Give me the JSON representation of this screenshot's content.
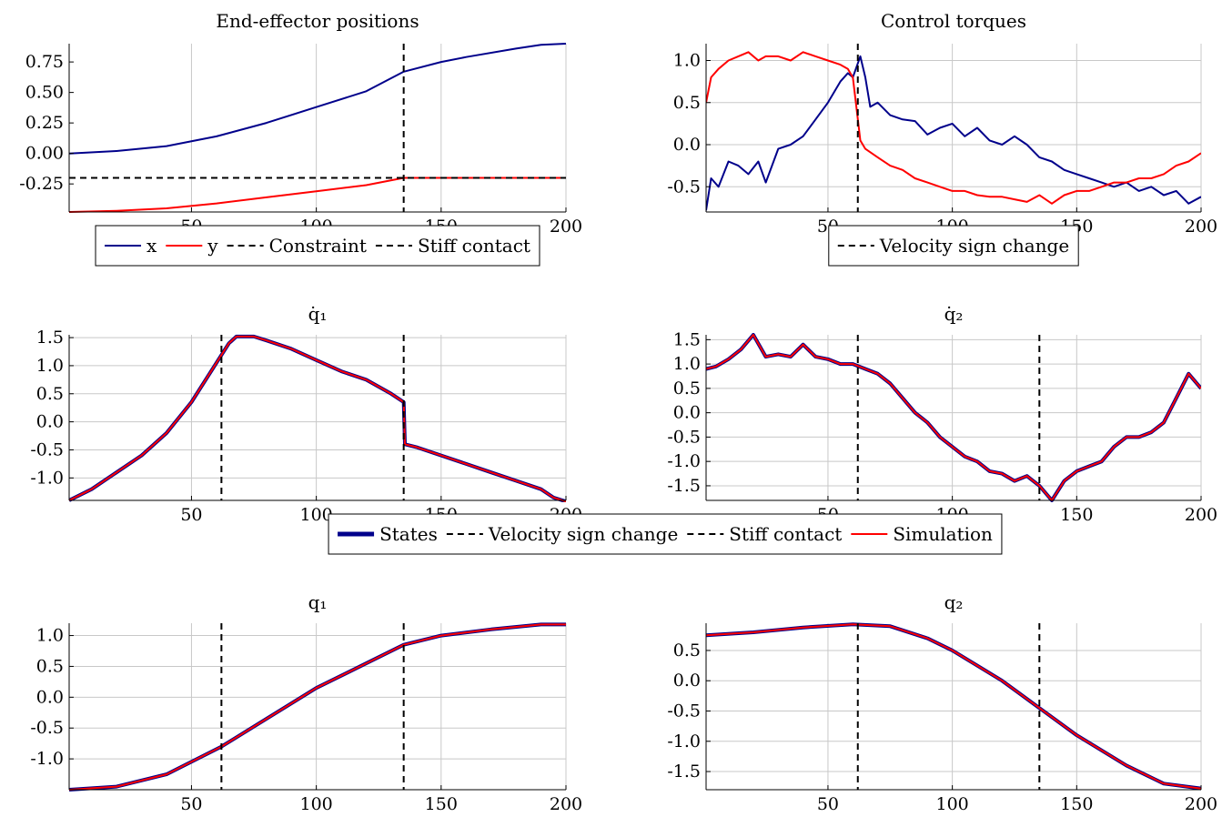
{
  "colors": {
    "blue": "#00008b",
    "red": "#ff0000",
    "black": "#000000",
    "grid": "#c8c8c8"
  },
  "chart_data": [
    {
      "id": "ee",
      "type": "line",
      "title": "End-effector positions",
      "xlim": [
        1,
        200
      ],
      "ylim": [
        -0.48,
        0.9
      ],
      "xticks": [
        50,
        100,
        150,
        200
      ],
      "yticks": [
        -0.25,
        0.0,
        0.25,
        0.5,
        0.75
      ],
      "ytick_labels": [
        "-0.25",
        "0.00",
        "0.25",
        "0.50",
        "0.75"
      ],
      "grid": "x-only",
      "series": [
        {
          "name": "x",
          "color": "#00008b",
          "x": [
            1,
            20,
            40,
            60,
            80,
            100,
            120,
            135,
            150,
            160,
            180,
            190,
            200
          ],
          "y": [
            0.0,
            0.02,
            0.06,
            0.14,
            0.25,
            0.38,
            0.51,
            0.67,
            0.75,
            0.79,
            0.86,
            0.89,
            0.9
          ]
        },
        {
          "name": "y",
          "color": "#ff0000",
          "x": [
            1,
            20,
            40,
            60,
            80,
            100,
            120,
            135,
            150,
            200
          ],
          "y": [
            -0.48,
            -0.47,
            -0.45,
            -0.41,
            -0.36,
            -0.31,
            -0.26,
            -0.2,
            -0.2,
            -0.2
          ]
        }
      ],
      "hlines": [
        {
          "name": "Constraint",
          "y": -0.2,
          "color": "#000000"
        }
      ],
      "vlines": [
        {
          "name": "Stiff contact",
          "x": 135,
          "color": "#000000"
        }
      ],
      "legend": {
        "position": "below",
        "entries": [
          {
            "label": "x",
            "style": "solid",
            "color": "#00008b"
          },
          {
            "label": "y",
            "style": "solid",
            "color": "#ff0000"
          },
          {
            "label": "Constraint",
            "style": "dashed",
            "color": "#000000"
          },
          {
            "label": "Stiff contact",
            "style": "dashed",
            "color": "#000000"
          }
        ]
      }
    },
    {
      "id": "tau",
      "type": "line",
      "title": "Control torques",
      "xlim": [
        1,
        200
      ],
      "ylim": [
        -0.8,
        1.2
      ],
      "xticks": [
        50,
        100,
        150,
        200
      ],
      "yticks": [
        -0.5,
        0.0,
        0.5,
        1.0
      ],
      "ytick_labels": [
        "-0.5",
        "0.0",
        "0.5",
        "1.0"
      ],
      "grid": "xy",
      "series": [
        {
          "color": "#00008b",
          "x": [
            1,
            3,
            6,
            10,
            14,
            18,
            22,
            25,
            30,
            35,
            40,
            45,
            50,
            55,
            58,
            60,
            63,
            65,
            67,
            70,
            75,
            80,
            85,
            90,
            95,
            100,
            105,
            110,
            115,
            120,
            125,
            130,
            135,
            140,
            145,
            150,
            155,
            160,
            165,
            170,
            175,
            180,
            185,
            190,
            195,
            200
          ],
          "y": [
            -0.78,
            -0.4,
            -0.5,
            -0.2,
            -0.25,
            -0.35,
            -0.2,
            -0.45,
            -0.05,
            0.0,
            0.1,
            0.3,
            0.5,
            0.75,
            0.85,
            0.8,
            1.05,
            0.8,
            0.45,
            0.5,
            0.35,
            0.3,
            0.28,
            0.12,
            0.2,
            0.25,
            0.1,
            0.2,
            0.05,
            0.0,
            0.1,
            0.0,
            -0.15,
            -0.2,
            -0.3,
            -0.35,
            -0.4,
            -0.45,
            -0.5,
            -0.45,
            -0.55,
            -0.5,
            -0.6,
            -0.55,
            -0.7,
            -0.62
          ]
        },
        {
          "color": "#ff0000",
          "x": [
            1,
            3,
            6,
            10,
            14,
            18,
            22,
            25,
            30,
            35,
            40,
            45,
            50,
            55,
            58,
            60,
            62,
            63,
            65,
            70,
            75,
            80,
            85,
            90,
            95,
            100,
            105,
            110,
            115,
            120,
            125,
            130,
            135,
            140,
            145,
            150,
            155,
            160,
            165,
            170,
            175,
            180,
            185,
            190,
            195,
            200
          ],
          "y": [
            0.5,
            0.8,
            0.9,
            1.0,
            1.05,
            1.1,
            1.0,
            1.05,
            1.05,
            1.0,
            1.1,
            1.05,
            1.0,
            0.95,
            0.9,
            0.8,
            0.3,
            0.05,
            -0.05,
            -0.15,
            -0.25,
            -0.3,
            -0.4,
            -0.45,
            -0.5,
            -0.55,
            -0.55,
            -0.6,
            -0.62,
            -0.62,
            -0.65,
            -0.68,
            -0.6,
            -0.7,
            -0.6,
            -0.55,
            -0.55,
            -0.5,
            -0.45,
            -0.45,
            -0.4,
            -0.4,
            -0.35,
            -0.25,
            -0.2,
            -0.1
          ]
        }
      ],
      "vlines": [
        {
          "name": "Velocity sign change",
          "x": 62,
          "color": "#000000"
        }
      ],
      "legend": {
        "position": "below",
        "entries": [
          {
            "label": "Velocity sign change",
            "style": "dashed",
            "color": "#000000"
          }
        ]
      }
    },
    {
      "id": "qd1",
      "type": "line",
      "title": "q̇₁",
      "xlim": [
        1,
        200
      ],
      "ylim": [
        -1.4,
        1.55
      ],
      "xticks": [
        50,
        100,
        150,
        200
      ],
      "yticks": [
        -1.0,
        -0.5,
        0.0,
        0.5,
        1.0,
        1.5
      ],
      "ytick_labels": [
        "-1.0",
        "-0.5",
        "0.0",
        "0.5",
        "1.0",
        "1.5"
      ],
      "grid": "xy",
      "series": [
        {
          "name": "States",
          "color": "#00008b",
          "width": 4,
          "x": [
            1,
            10,
            20,
            30,
            40,
            50,
            60,
            65,
            68,
            75,
            80,
            90,
            100,
            110,
            120,
            130,
            135,
            135.5,
            140,
            150,
            160,
            170,
            180,
            190,
            195,
            200
          ],
          "y": [
            -1.4,
            -1.2,
            -0.9,
            -0.6,
            -0.2,
            0.35,
            1.05,
            1.4,
            1.52,
            1.52,
            1.45,
            1.3,
            1.1,
            0.9,
            0.75,
            0.5,
            0.35,
            -0.4,
            -0.45,
            -0.6,
            -0.75,
            -0.9,
            -1.05,
            -1.2,
            -1.35,
            -1.42
          ]
        },
        {
          "name": "Simulation",
          "color": "#ff0000",
          "width": 2,
          "x": [
            1,
            10,
            20,
            30,
            40,
            50,
            60,
            65,
            68,
            75,
            80,
            90,
            100,
            110,
            120,
            130,
            135,
            135.5,
            140,
            150,
            160,
            170,
            180,
            190,
            195,
            200
          ],
          "y": [
            -1.4,
            -1.2,
            -0.9,
            -0.6,
            -0.2,
            0.35,
            1.05,
            1.4,
            1.52,
            1.52,
            1.45,
            1.3,
            1.1,
            0.9,
            0.75,
            0.5,
            0.35,
            -0.4,
            -0.45,
            -0.6,
            -0.75,
            -0.9,
            -1.05,
            -1.2,
            -1.35,
            -1.42
          ]
        }
      ],
      "vlines": [
        {
          "name": "Velocity sign change",
          "x": 62,
          "color": "#000000"
        },
        {
          "name": "Stiff contact",
          "x": 135,
          "color": "#000000"
        }
      ]
    },
    {
      "id": "qd2",
      "type": "line",
      "title": "q̇₂",
      "xlim": [
        1,
        200
      ],
      "ylim": [
        -1.8,
        1.6
      ],
      "xticks": [
        50,
        100,
        150,
        200
      ],
      "yticks": [
        -1.5,
        -1.0,
        -0.5,
        0.0,
        0.5,
        1.0,
        1.5
      ],
      "ytick_labels": [
        "-1.5",
        "-1.0",
        "-0.5",
        "0.0",
        "0.5",
        "1.0",
        "1.5"
      ],
      "grid": "xy",
      "series": [
        {
          "name": "States",
          "color": "#00008b",
          "width": 4,
          "x": [
            1,
            5,
            10,
            15,
            20,
            25,
            30,
            35,
            40,
            45,
            50,
            55,
            60,
            65,
            70,
            75,
            80,
            85,
            90,
            95,
            100,
            105,
            110,
            115,
            120,
            125,
            130,
            135,
            140,
            145,
            150,
            155,
            160,
            165,
            170,
            175,
            180,
            185,
            190,
            195,
            200
          ],
          "y": [
            0.9,
            0.95,
            1.1,
            1.3,
            1.6,
            1.15,
            1.2,
            1.15,
            1.4,
            1.15,
            1.1,
            1.0,
            1.0,
            0.9,
            0.8,
            0.6,
            0.3,
            0.0,
            -0.2,
            -0.5,
            -0.7,
            -0.9,
            -1.0,
            -1.2,
            -1.25,
            -1.4,
            -1.3,
            -1.5,
            -1.8,
            -1.4,
            -1.2,
            -1.1,
            -1.0,
            -0.7,
            -0.5,
            -0.5,
            -0.4,
            -0.2,
            0.3,
            0.8,
            0.5
          ]
        },
        {
          "name": "Simulation",
          "color": "#ff0000",
          "width": 2,
          "x": [
            1,
            5,
            10,
            15,
            20,
            25,
            30,
            35,
            40,
            45,
            50,
            55,
            60,
            65,
            70,
            75,
            80,
            85,
            90,
            95,
            100,
            105,
            110,
            115,
            120,
            125,
            130,
            135,
            140,
            145,
            150,
            155,
            160,
            165,
            170,
            175,
            180,
            185,
            190,
            195,
            200
          ],
          "y": [
            0.9,
            0.95,
            1.1,
            1.3,
            1.6,
            1.15,
            1.2,
            1.15,
            1.4,
            1.15,
            1.1,
            1.0,
            1.0,
            0.9,
            0.8,
            0.6,
            0.3,
            0.0,
            -0.2,
            -0.5,
            -0.7,
            -0.9,
            -1.0,
            -1.2,
            -1.25,
            -1.4,
            -1.3,
            -1.5,
            -1.8,
            -1.4,
            -1.2,
            -1.1,
            -1.0,
            -0.7,
            -0.5,
            -0.5,
            -0.4,
            -0.2,
            0.3,
            0.8,
            0.5
          ]
        }
      ],
      "vlines": [
        {
          "name": "Velocity sign change",
          "x": 62,
          "color": "#000000"
        },
        {
          "name": "Stiff contact",
          "x": 135,
          "color": "#000000"
        }
      ],
      "legend": {
        "position": "below",
        "entries": [
          {
            "label": "States",
            "style": "thick",
            "color": "#00008b"
          },
          {
            "label": "Velocity sign change",
            "style": "dashed",
            "color": "#000000"
          },
          {
            "label": "Stiff contact",
            "style": "dashed",
            "color": "#000000"
          },
          {
            "label": "Simulation",
            "style": "solid",
            "color": "#ff0000"
          }
        ]
      }
    },
    {
      "id": "q1",
      "type": "line",
      "title": "q₁",
      "xlim": [
        1,
        200
      ],
      "ylim": [
        -1.5,
        1.2
      ],
      "xticks": [
        50,
        100,
        150,
        200
      ],
      "yticks": [
        -1.0,
        -0.5,
        0.0,
        0.5,
        1.0
      ],
      "ytick_labels": [
        "-1.0",
        "-0.5",
        "0.0",
        "0.5",
        "1.0"
      ],
      "grid": "xy",
      "series": [
        {
          "name": "States",
          "color": "#00008b",
          "width": 4,
          "x": [
            1,
            20,
            40,
            62,
            80,
            100,
            120,
            135,
            150,
            170,
            190,
            200
          ],
          "y": [
            -1.5,
            -1.45,
            -1.25,
            -0.8,
            -0.35,
            0.15,
            0.55,
            0.85,
            1.0,
            1.1,
            1.18,
            1.18
          ]
        },
        {
          "name": "Simulation",
          "color": "#ff0000",
          "width": 2,
          "x": [
            1,
            20,
            40,
            62,
            80,
            100,
            120,
            135,
            150,
            170,
            190,
            200
          ],
          "y": [
            -1.5,
            -1.45,
            -1.25,
            -0.8,
            -0.35,
            0.15,
            0.55,
            0.85,
            1.0,
            1.1,
            1.18,
            1.18
          ]
        }
      ],
      "vlines": [
        {
          "name": "Velocity sign change",
          "x": 62,
          "color": "#000000"
        },
        {
          "name": "Stiff contact",
          "x": 135,
          "color": "#000000"
        }
      ]
    },
    {
      "id": "q2",
      "type": "line",
      "title": "q₂",
      "xlim": [
        1,
        200
      ],
      "ylim": [
        -1.8,
        0.95
      ],
      "xticks": [
        50,
        100,
        150,
        200
      ],
      "yticks": [
        -1.5,
        -1.0,
        -0.5,
        0.0,
        0.5
      ],
      "ytick_labels": [
        "-1.5",
        "-1.0",
        "-0.5",
        "0.0",
        "0.5"
      ],
      "grid": "xy",
      "series": [
        {
          "name": "States",
          "color": "#00008b",
          "width": 4,
          "x": [
            1,
            20,
            40,
            60,
            75,
            90,
            100,
            110,
            120,
            135,
            150,
            170,
            185,
            200
          ],
          "y": [
            0.75,
            0.8,
            0.88,
            0.93,
            0.9,
            0.7,
            0.5,
            0.25,
            0.0,
            -0.45,
            -0.9,
            -1.4,
            -1.7,
            -1.78
          ]
        },
        {
          "name": "Simulation",
          "color": "#ff0000",
          "width": 2,
          "x": [
            1,
            20,
            40,
            60,
            75,
            90,
            100,
            110,
            120,
            135,
            150,
            170,
            185,
            200
          ],
          "y": [
            0.75,
            0.8,
            0.88,
            0.93,
            0.9,
            0.7,
            0.5,
            0.25,
            0.0,
            -0.45,
            -0.9,
            -1.4,
            -1.7,
            -1.78
          ]
        }
      ],
      "vlines": [
        {
          "name": "Velocity sign change",
          "x": 62,
          "color": "#000000"
        },
        {
          "name": "Stiff contact",
          "x": 135,
          "color": "#000000"
        }
      ]
    }
  ]
}
